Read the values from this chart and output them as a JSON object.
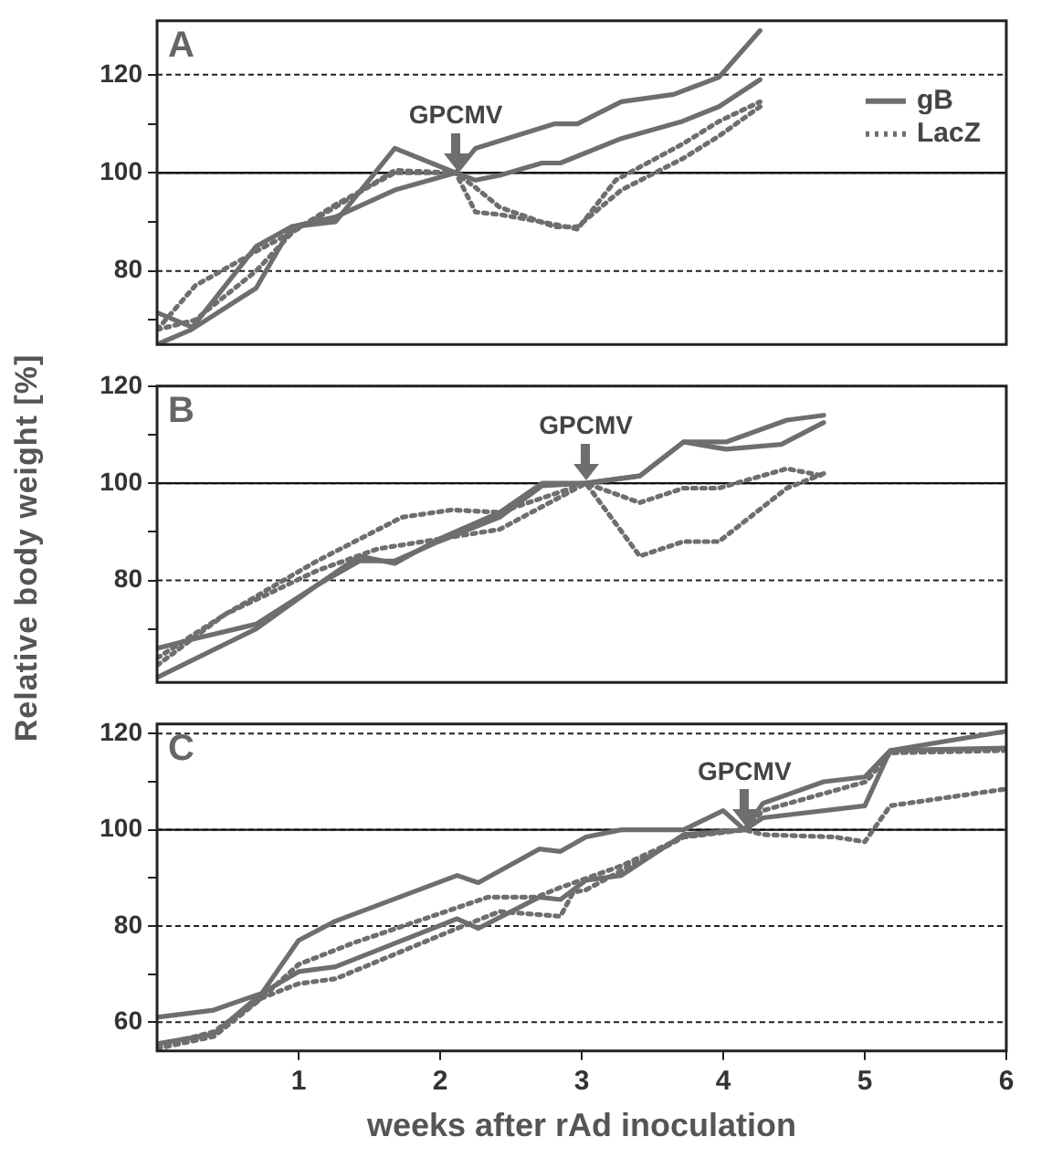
{
  "chart_data": [
    {
      "type": "line",
      "annotations": [
        "A",
        {
          "text": "GPCMV",
          "x": 2.11,
          "y": 100
        }
      ],
      "xlim": [
        0,
        6
      ],
      "xticks": [
        1,
        2,
        3,
        4,
        5,
        6
      ],
      "ylim": [
        65,
        131
      ],
      "yticks": [
        {
          "value": 70,
          "label": null
        },
        80,
        {
          "value": 90,
          "label": null
        },
        100,
        {
          "value": 110,
          "label": null
        },
        120
      ],
      "tick_labels": "y",
      "grid": "y",
      "legend": "top right",
      "ref_lines": [
        {
          "axis": "y",
          "value": 100,
          "label": null,
          "line_style": "solid"
        }
      ],
      "series": [
        {
          "name": "gB",
          "color": "#6e6e6e",
          "line_style": "solid",
          "x": [
            0,
            0.24,
            0.7,
            0.95,
            1.26,
            1.68,
            2.11,
            2.25,
            2.42,
            2.81,
            2.97,
            3.28,
            3.65,
            3.97,
            4.26
          ],
          "values": [
            65,
            68,
            76.5,
            89,
            90,
            105,
            100,
            105,
            106.5,
            110,
            110,
            114.5,
            116,
            119.5,
            129
          ]
        },
        {
          "color": "#6e6e6e",
          "line_style": "solid",
          "x": [
            0,
            0.25,
            0.7,
            0.95,
            1.26,
            1.68,
            2.11,
            2.25,
            2.42,
            2.72,
            2.85,
            3.28,
            3.71,
            3.97,
            4.26
          ],
          "values": [
            71.5,
            68.5,
            85,
            89,
            91,
            96.5,
            100,
            98.5,
            99.5,
            102,
            102,
            107,
            110.5,
            113.5,
            119
          ]
        },
        {
          "name": "LacZ",
          "color": "#6e6e6e",
          "line_style": "dotted",
          "x": [
            0,
            0.27,
            0.7,
            0.96,
            1.26,
            1.68,
            2.11,
            2.25,
            2.42,
            2.81,
            2.97,
            3.24,
            3.72,
            3.97,
            4.26
          ],
          "values": [
            68,
            77,
            84,
            88,
            93,
            100.5,
            100,
            92,
            91.5,
            89.5,
            88.5,
            98.5,
            106,
            110.5,
            114.5
          ]
        },
        {
          "color": "#6e6e6e",
          "line_style": "dotted",
          "x": [
            0,
            0.27,
            0.7,
            0.96,
            1.26,
            1.68,
            2.11,
            2.25,
            2.42,
            2.81,
            2.97,
            3.28,
            3.72,
            3.97,
            4.26
          ],
          "values": [
            68,
            70,
            80,
            88,
            93.5,
            100,
            100,
            97,
            93,
            89,
            89,
            96.5,
            103,
            107.5,
            113.5
          ]
        }
      ]
    },
    {
      "type": "line",
      "ylabel": "Relative body weight [%]",
      "annotations": [
        "B",
        {
          "text": "GPCMV",
          "x": 3.03,
          "y": 100
        }
      ],
      "xlim": [
        0,
        6
      ],
      "xticks": [
        1,
        2,
        3,
        4,
        5,
        6
      ],
      "ylim": [
        59,
        120
      ],
      "yticks": [
        {
          "value": 70,
          "label": null
        },
        80,
        {
          "value": 90,
          "label": null
        },
        100,
        {
          "value": 110,
          "label": null
        },
        120
      ],
      "tick_labels": "y",
      "grid": "y",
      "ref_lines": [
        {
          "axis": "y",
          "value": 100,
          "label": null,
          "line_style": "solid"
        }
      ],
      "series": [
        {
          "color": "#6e6e6e",
          "line_style": "solid",
          "x": [
            0,
            0.7,
            1.13,
            1.43,
            1.68,
            1.99,
            2.42,
            2.72,
            3.03,
            3.41,
            3.72,
            4.02,
            4.41,
            4.71
          ],
          "values": [
            60,
            70,
            79,
            85,
            83.5,
            88.5,
            94,
            100,
            100,
            101.5,
            108.5,
            107,
            108,
            112.5
          ]
        },
        {
          "color": "#6e6e6e",
          "line_style": "solid",
          "x": [
            0,
            0.27,
            0.7,
            1.13,
            1.43,
            1.68,
            1.99,
            2.42,
            2.72,
            3.03,
            3.41,
            3.72,
            4.02,
            4.45,
            4.71
          ],
          "values": [
            66,
            68,
            71,
            79,
            84,
            84,
            88,
            93,
            99.5,
            100,
            101.5,
            108.5,
            108.5,
            113,
            114
          ]
        },
        {
          "color": "#6e6e6e",
          "line_style": "dotted",
          "x": [
            0,
            0.48,
            1.13,
            1.56,
            1.99,
            2.42,
            3.03,
            3.41,
            3.72,
            3.97,
            4.45,
            4.71
          ],
          "values": [
            62.5,
            73,
            82,
            86.5,
            88.5,
            90.5,
            100,
            85,
            88,
            88,
            99,
            102
          ]
        },
        {
          "color": "#6e6e6e",
          "line_style": "dotted",
          "x": [
            0,
            0.48,
            1.13,
            1.73,
            2.08,
            2.42,
            3.03,
            3.41,
            3.72,
            3.97,
            4.45,
            4.71
          ],
          "values": [
            64,
            73,
            84,
            93,
            94.5,
            94,
            100,
            96,
            99,
            99,
            103,
            101.5
          ]
        }
      ]
    },
    {
      "type": "line",
      "xlabel": "weeks after rAd inoculation",
      "annotations": [
        "C",
        {
          "text": "GPCMV",
          "x": 4.15,
          "y": 100
        }
      ],
      "xlim": [
        0,
        6
      ],
      "xticks": [
        1,
        2,
        3,
        4,
        5,
        6
      ],
      "ylim": [
        54,
        122
      ],
      "yticks": [
        60,
        {
          "value": 70,
          "label": null
        },
        80,
        {
          "value": 90,
          "label": null
        },
        100,
        {
          "value": 110,
          "label": null
        },
        120
      ],
      "grid": "y",
      "ref_lines": [
        {
          "axis": "y",
          "value": 100,
          "label": null,
          "line_style": "solid"
        }
      ],
      "series": [
        {
          "color": "#6e6e6e",
          "line_style": "solid",
          "x": [
            0,
            0.4,
            0.74,
            1,
            1.26,
            2.12,
            2.27,
            2.7,
            2.85,
            3.03,
            3.28,
            3.72,
            4,
            4.15,
            4.28,
            4.71,
            5,
            5.18,
            6
          ],
          "values": [
            61,
            62.5,
            66,
            77,
            81,
            90.5,
            89,
            96,
            95.5,
            98.5,
            100,
            100,
            104,
            100,
            105.5,
            110,
            111,
            116.5,
            120.5
          ]
        },
        {
          "color": "#6e6e6e",
          "line_style": "solid",
          "x": [
            0,
            0.4,
            0.74,
            1,
            1.26,
            2.12,
            2.27,
            2.7,
            2.85,
            3.03,
            3.28,
            3.72,
            4.15,
            4.28,
            5,
            5.18,
            6
          ],
          "values": [
            55.5,
            57.5,
            66,
            70.5,
            71.5,
            81.5,
            79.5,
            86,
            85.5,
            89.5,
            90.5,
            99,
            100,
            102.5,
            105,
            116.5,
            117
          ]
        },
        {
          "color": "#6e6e6e",
          "line_style": "dotted",
          "x": [
            0,
            0.4,
            0.74,
            1,
            1.26,
            2.12,
            2.42,
            2.85,
            2.94,
            3.03,
            3.28,
            3.72,
            4.15,
            4.28,
            5.01,
            5.18,
            6
          ],
          "values": [
            54.5,
            57,
            65,
            68,
            69,
            79.5,
            83,
            82,
            87,
            87.5,
            91.5,
            98.5,
            100,
            104,
            110,
            116,
            116.5
          ]
        },
        {
          "color": "#6e6e6e",
          "line_style": "dotted",
          "x": [
            0,
            0.4,
            0.74,
            1,
            1.39,
            1.99,
            2.34,
            2.68,
            2.85,
            3.28,
            3.72,
            4.15,
            4.28,
            4.79,
            5,
            5.18,
            6
          ],
          "values": [
            55,
            58,
            65,
            72,
            76.5,
            82.5,
            86,
            86,
            88,
            92.5,
            98.5,
            100,
            99,
            98.5,
            97.5,
            105,
            108.5
          ]
        }
      ]
    }
  ]
}
